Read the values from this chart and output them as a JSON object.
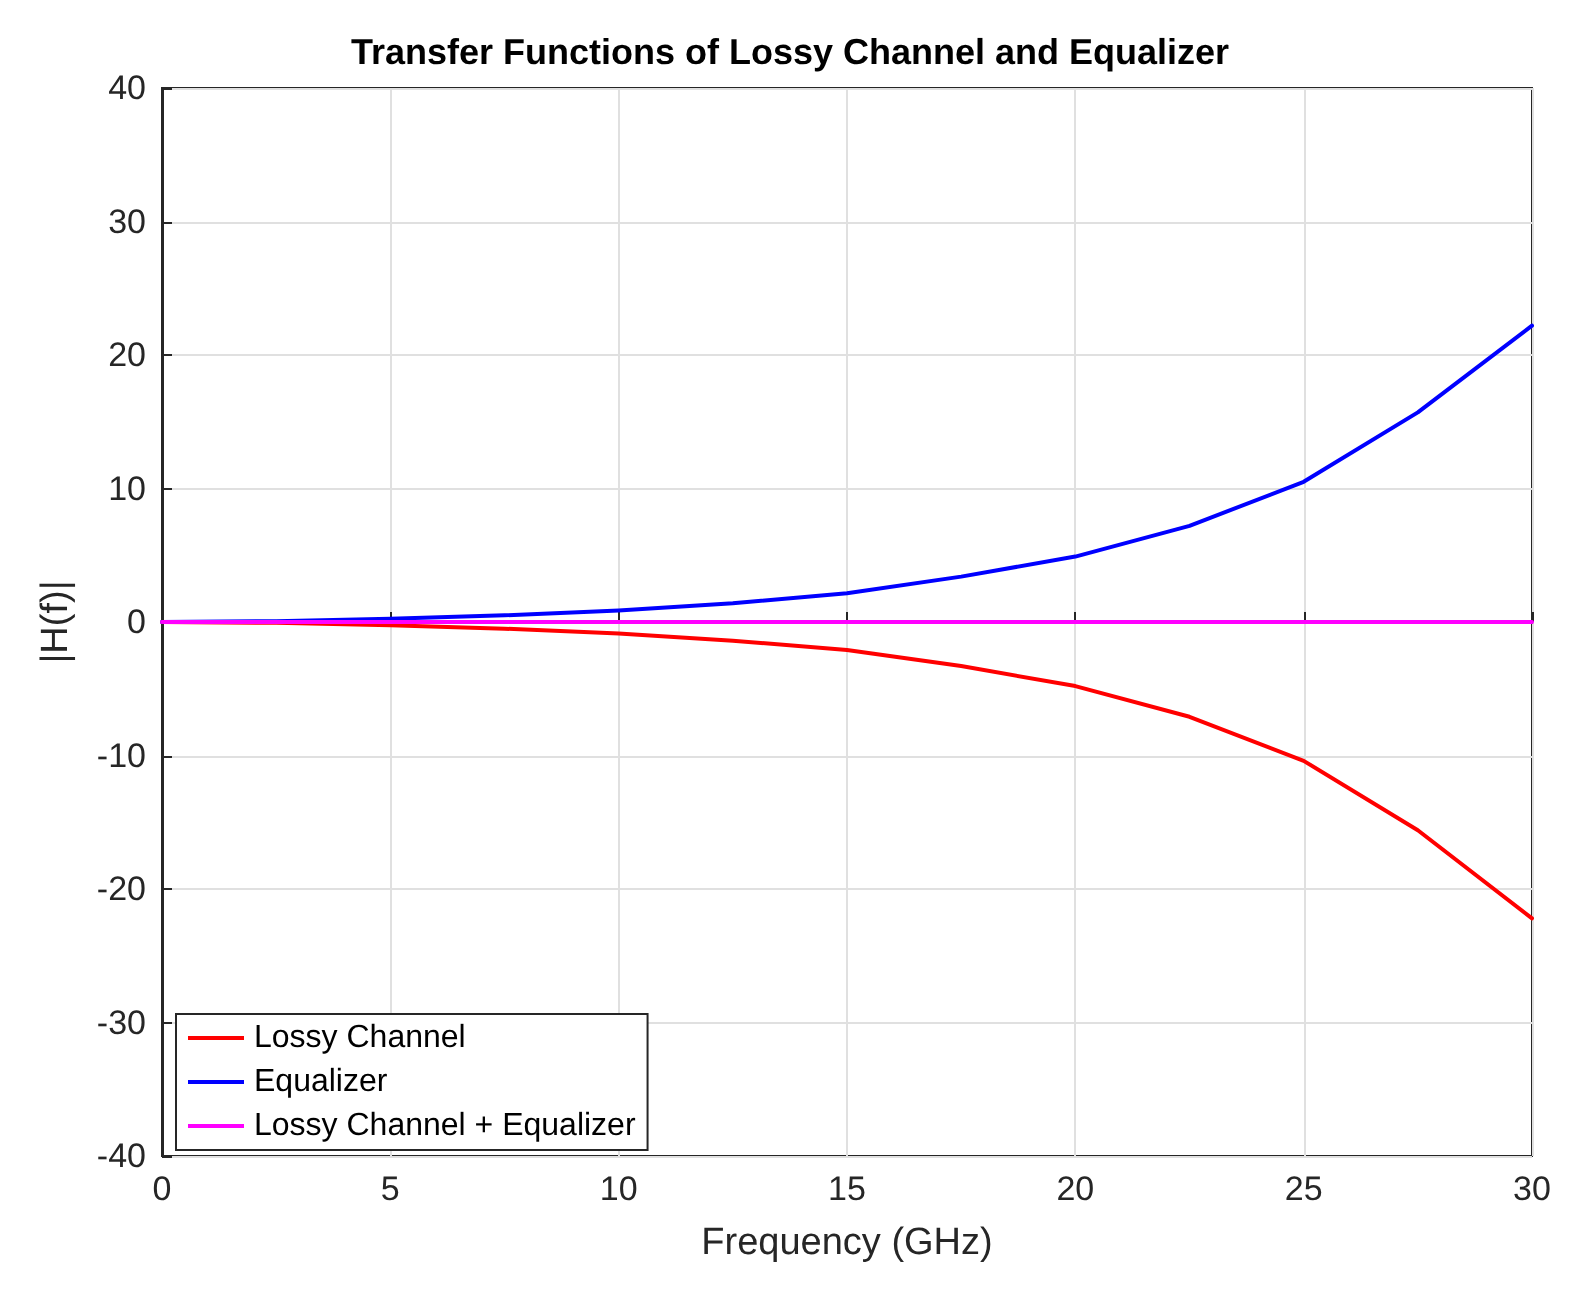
{
  "chart_data": {
    "type": "line",
    "title": "Transfer Functions of Lossy Channel and Equalizer",
    "xlabel": "Frequency (GHz)",
    "ylabel": "|H(f)|",
    "x": [
      0,
      2.5,
      5,
      7.5,
      10,
      12.5,
      15,
      17.5,
      20,
      22.5,
      25,
      27.5,
      30
    ],
    "series": [
      {
        "name": "Lossy Channel",
        "color": "#ff0000",
        "values": [
          0,
          -0.06,
          -0.25,
          -0.5,
          -0.87,
          -1.4,
          -2.1,
          -3.3,
          -4.8,
          -7.1,
          -10.4,
          -15.6,
          -22.2
        ]
      },
      {
        "name": "Equalizer",
        "color": "#0000ff",
        "values": [
          0,
          0.06,
          0.25,
          0.5,
          0.87,
          1.4,
          2.15,
          3.4,
          4.9,
          7.2,
          10.5,
          15.7,
          22.2
        ]
      },
      {
        "name": "Lossy Channel + Equalizer",
        "color": "#ff00ff",
        "values": [
          0,
          0,
          0,
          0,
          0,
          0,
          0,
          0,
          0,
          0,
          0,
          0,
          0
        ]
      }
    ],
    "xlim": [
      0,
      30
    ],
    "xticks": [
      0,
      5,
      10,
      15,
      20,
      25,
      30
    ],
    "ylim": [
      -40,
      40
    ],
    "yticks": [
      -40,
      -30,
      -20,
      -10,
      0,
      10,
      20,
      30,
      40
    ],
    "grid": true,
    "legend": "bottom left",
    "marker": "none",
    "line_style": "solid"
  }
}
